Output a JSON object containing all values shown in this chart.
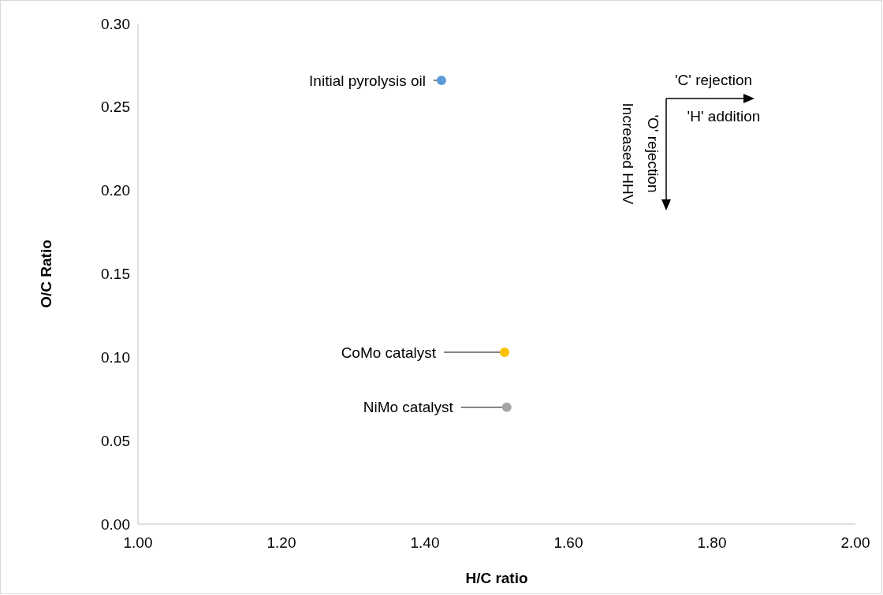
{
  "chart_data": {
    "type": "scatter",
    "xlabel": "H/C ratio",
    "ylabel": "O/C Ratio",
    "xlim": [
      1.0,
      2.0
    ],
    "xticks": [
      {
        "value": 1.0,
        "label": "1.00"
      },
      {
        "value": 1.2,
        "label": "1.20"
      },
      {
        "value": 1.4,
        "label": "1.40"
      },
      {
        "value": 1.6,
        "label": "1.60"
      },
      {
        "value": 1.8,
        "label": "1.80"
      },
      {
        "value": 2.0,
        "label": "2.00"
      }
    ],
    "ylim": [
      0,
      0.3
    ],
    "yticks": [
      {
        "value": 0,
        "label": "0.00"
      },
      {
        "value": 0.05,
        "label": "0.05"
      },
      {
        "value": 0.1,
        "label": "0.10"
      },
      {
        "value": 0.15,
        "label": "0.15"
      },
      {
        "value": 0.2,
        "label": "0.20"
      },
      {
        "value": 0.25,
        "label": "0.25"
      },
      {
        "value": 0.3,
        "label": "0.30"
      }
    ],
    "series": [
      {
        "color": "#5b9bd5",
        "x": [
          1.423
        ],
        "values": [
          0.266
        ]
      },
      {
        "color": "#ffc000",
        "x": [
          1.511
        ],
        "values": [
          0.103
        ]
      },
      {
        "color": "#a5a5a5",
        "x": [
          1.514
        ],
        "values": [
          0.07
        ]
      }
    ],
    "marker": "circle",
    "grid": false,
    "annotations": [
      {
        "text": "Initial pyrolysis oil",
        "x": 1.423,
        "y": 0.266
      },
      {
        "text": "CoMo catalyst",
        "x": 1.511,
        "y": 0.103
      },
      {
        "text": "NiMo catalyst",
        "x": 1.514,
        "y": 0.07
      },
      "'C' rejection",
      "'H' addition",
      "'O' rejection",
      "Increased HHV"
    ]
  }
}
